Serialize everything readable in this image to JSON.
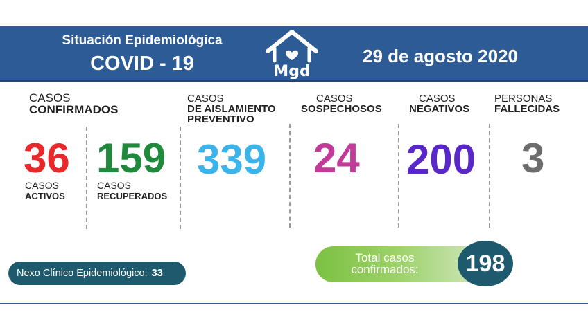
{
  "header": {
    "title_line1": "Situación Epidemiológica",
    "title_line2": "COVID - 19",
    "logo_text": "Mgd",
    "date": "29 de agosto 2020"
  },
  "stats": {
    "confirmados": {
      "label_top": "CASOS",
      "label_bold": "CONFIRMADOS"
    },
    "activos": {
      "value": "36",
      "label_top": "CASOS",
      "label_bold": "ACTIVOS",
      "color": "#e8282b"
    },
    "recuperados": {
      "value": "159",
      "label_top": "CASOS",
      "label_bold": "RECUPERADOS",
      "color": "#1f8a3b"
    },
    "aislamiento": {
      "label_top": "CASOS",
      "label_bold1": "DE AISLAMIENTO",
      "label_bold2": "PREVENTIVO",
      "value": "339",
      "color": "#3ab4ea"
    },
    "sospechosos": {
      "label_top": "CASOS",
      "label_bold": "SOSPECHOSOS",
      "value": "24",
      "color": "#c23b98"
    },
    "negativos": {
      "label_top": "CASOS",
      "label_bold": "NEGATIVOS",
      "value": "200",
      "color": "#5a27c9"
    },
    "fallecidas": {
      "label_top": "PERSONAS",
      "label_bold": "FALLECIDAS",
      "value": "3",
      "color": "#6d6d6d"
    }
  },
  "nexo": {
    "label": "Nexo Clínico Epidemiológico:",
    "value": "33"
  },
  "total": {
    "label_line1": "Total casos",
    "label_line2": "confirmados:",
    "value": "198"
  },
  "colors": {
    "header_bg": "#2d5b95",
    "dark_teal": "#1e5a6e",
    "green_pill": "#7bc142"
  }
}
